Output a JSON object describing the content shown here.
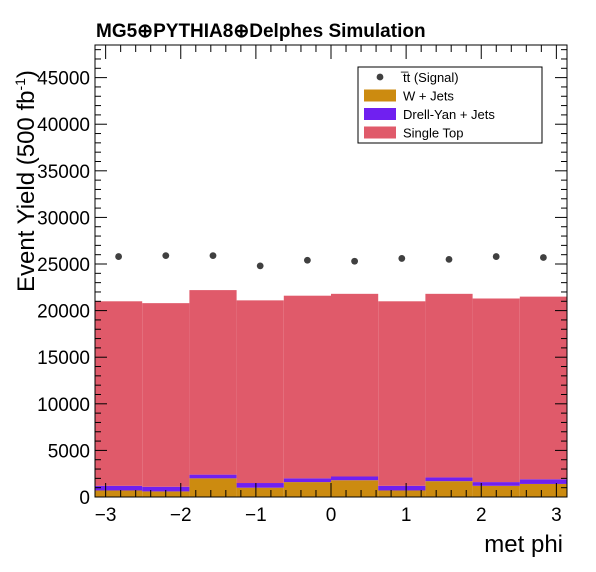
{
  "chart_data": {
    "type": "bar",
    "stacked": true,
    "title": "MG5⊕PYTHIA8⊕Delphes Simulation",
    "xlabel": "met phi",
    "ylabel": "Event Yield (500 fb",
    "ylabel_sup": "-1",
    "ylabel_close": ")",
    "xlim": [
      -3.1416,
      3.1416
    ],
    "ylim": [
      0,
      48500
    ],
    "x_ticks": [
      -3,
      -2,
      -1,
      0,
      1,
      2,
      3
    ],
    "x_tick_labels": [
      "−3",
      "−2",
      "−1",
      "0",
      "1",
      "2",
      "3"
    ],
    "y_ticks": [
      0,
      5000,
      10000,
      15000,
      20000,
      25000,
      30000,
      35000,
      40000,
      45000
    ],
    "y_tick_labels": [
      "0",
      "5000",
      "10000",
      "15000",
      "20000",
      "25000",
      "30000",
      "35000",
      "40000",
      "45000"
    ],
    "bin_edges": [
      -3.1416,
      -2.5133,
      -1.885,
      -1.2566,
      -0.6283,
      0,
      0.6283,
      1.2566,
      1.885,
      2.5133,
      3.1416
    ],
    "series": [
      {
        "name": "W + Jets",
        "color": "#cc8b10",
        "values": [
          700,
          600,
          2000,
          1000,
          1600,
          1800,
          700,
          1700,
          1200,
          1400
        ]
      },
      {
        "name": "Drell-Yan + Jets",
        "color": "#7020f0",
        "values": [
          500,
          500,
          400,
          500,
          400,
          400,
          500,
          400,
          400,
          500
        ]
      },
      {
        "name": "Single Top",
        "color": "#e05a6a",
        "values": [
          19800,
          19700,
          19800,
          19600,
          19600,
          19600,
          19800,
          19700,
          19700,
          19600
        ]
      }
    ],
    "signal": {
      "name": "t̅t (Signal)",
      "color": "#404040",
      "x": [
        -2.8274,
        -2.1991,
        -1.5708,
        -0.9425,
        -0.3142,
        0.3142,
        0.9425,
        1.5708,
        2.1991,
        2.8274
      ],
      "y": [
        25800,
        25900,
        25900,
        24800,
        25400,
        25300,
        25600,
        25500,
        25800,
        25700
      ]
    },
    "legend": {
      "position": "top-right",
      "entries": [
        {
          "label": "t̅t (Signal)",
          "kind": "marker",
          "color": "#404040"
        },
        {
          "label": "W + Jets",
          "kind": "box",
          "color": "#cc8b10"
        },
        {
          "label": "Drell-Yan + Jets",
          "kind": "box",
          "color": "#7020f0"
        },
        {
          "label": "Single Top",
          "kind": "box",
          "color": "#e05a6a"
        }
      ]
    },
    "grid": false
  }
}
